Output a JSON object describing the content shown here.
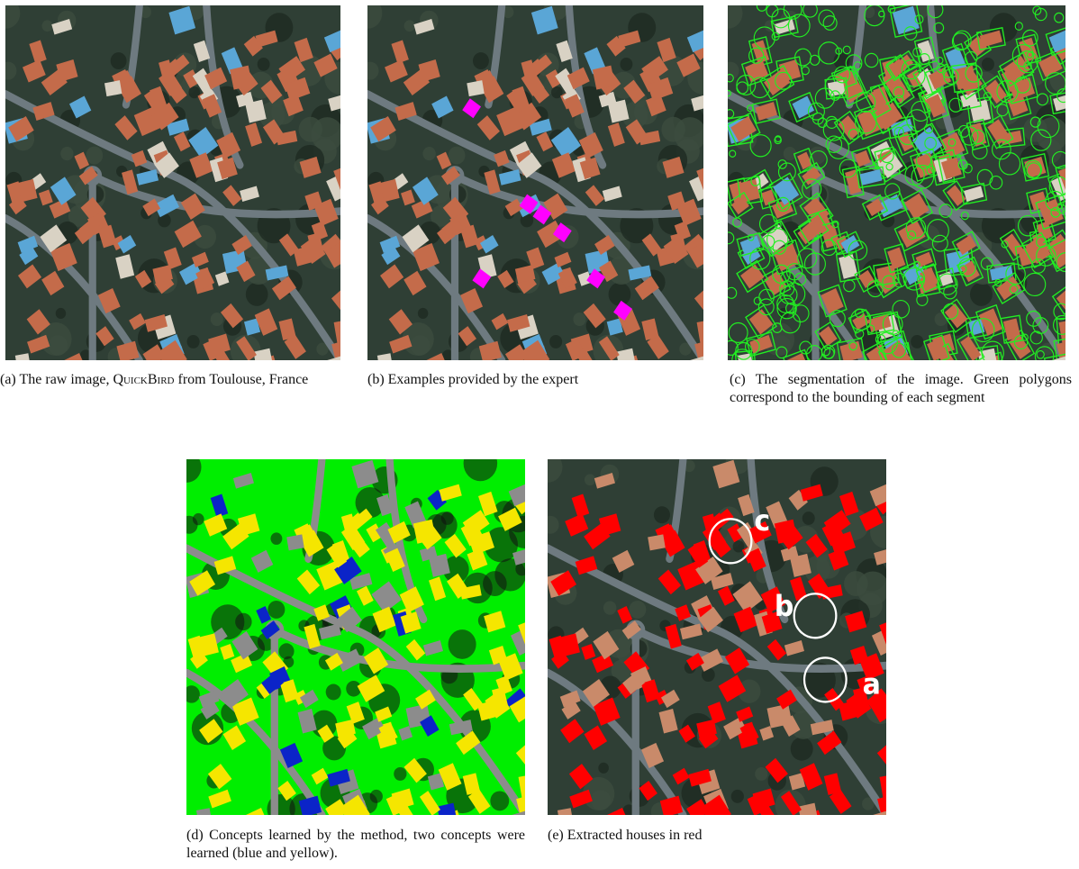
{
  "figure": {
    "panels": [
      {
        "id": "a",
        "label": "(a)",
        "caption_before": "The raw image, ",
        "caption_smallcaps": "QuickBird",
        "caption_after": " from Toulouse, France",
        "content": "aerial-image-raw"
      },
      {
        "id": "b",
        "label": "(b)",
        "caption": "Examples provided by the expert",
        "content": "aerial-image-with-examples",
        "marker_color": "#ff00ff"
      },
      {
        "id": "c",
        "label": "(c)",
        "caption": "The segmentation of the image. Green polygons correspond to the bounding of each segment",
        "content": "segmentation-overlay",
        "overlay_color": "#22ee22"
      },
      {
        "id": "d",
        "label": "(d)",
        "caption": "Concepts learned by the method, two concepts were learned (blue and yellow).",
        "content": "concept-map",
        "colors": {
          "vegetation": "#00ee00",
          "road": "#8c8c8c",
          "concept1": "#f5e600",
          "concept2": "#0b24c8",
          "shadow": "#111111"
        }
      },
      {
        "id": "e",
        "label": "(e)",
        "caption": "Extracted houses in red",
        "content": "extracted-houses",
        "highlight_color": "#ff0000",
        "annotations": [
          "c",
          "b",
          "a"
        ]
      }
    ]
  }
}
